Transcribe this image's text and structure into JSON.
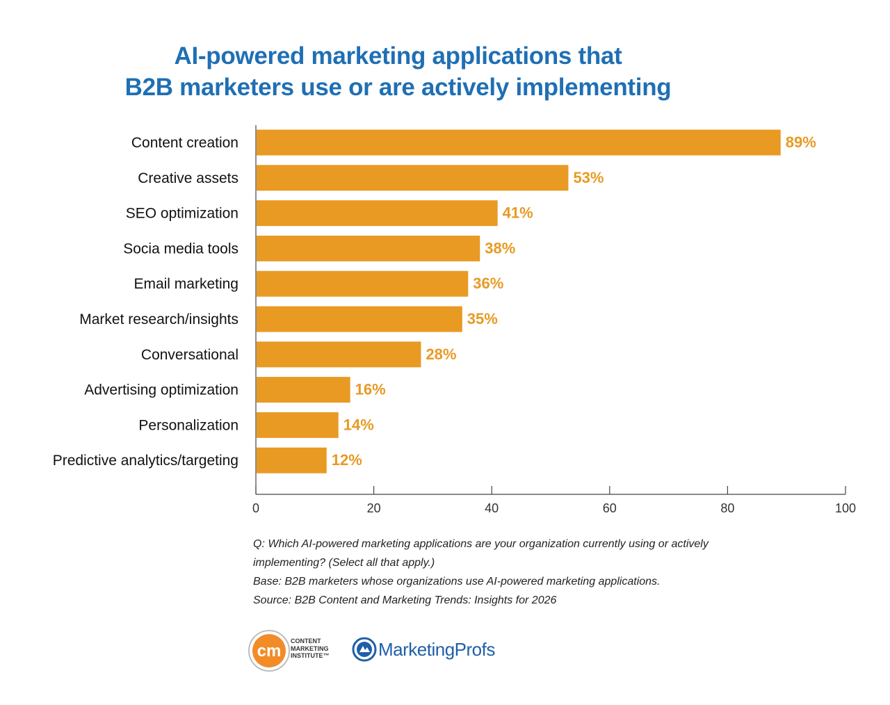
{
  "title": {
    "line1": "AI-powered marketing applications that",
    "line2": "B2B marketers use or are actively implementing"
  },
  "chart_data": {
    "type": "bar",
    "orientation": "horizontal",
    "categories": [
      "Content creation",
      "Creative assets",
      "SEO optimization",
      "Socia media tools",
      "Email marketing",
      "Market research/insights",
      "Conversational",
      "Advertising optimization",
      "Personalization",
      "Predictive analytics/targeting"
    ],
    "values": [
      89,
      53,
      41,
      38,
      36,
      35,
      28,
      16,
      14,
      12
    ],
    "value_labels": [
      "89%",
      "53%",
      "41%",
      "38%",
      "36%",
      "35%",
      "28%",
      "16%",
      "14%",
      "12%"
    ],
    "xlim": [
      0,
      100
    ],
    "x_ticks": [
      0,
      20,
      40,
      60,
      80,
      100
    ],
    "bar_color": "#e89a23",
    "label_color": "#e89a23",
    "grid": false
  },
  "footnotes": {
    "q_line1": "Q: Which AI-powered marketing applications are your organization currently using or actively",
    "q_line2": "implementing? (Select all that apply.)",
    "base": "Base: B2B marketers whose organizations use AI-powered marketing applications.",
    "source": "Source: B2B Content and Marketing Trends: Insights for 2026"
  },
  "logos": {
    "cmi_mark": "cm",
    "cmi_line1": "CONTENT",
    "cmi_line2": "MARKETING",
    "cmi_line3": "INSTITUTE™",
    "mp_name": "MarketingProfs",
    "cmi_color": "#f28c28",
    "mp_color": "#1f5fa8"
  }
}
